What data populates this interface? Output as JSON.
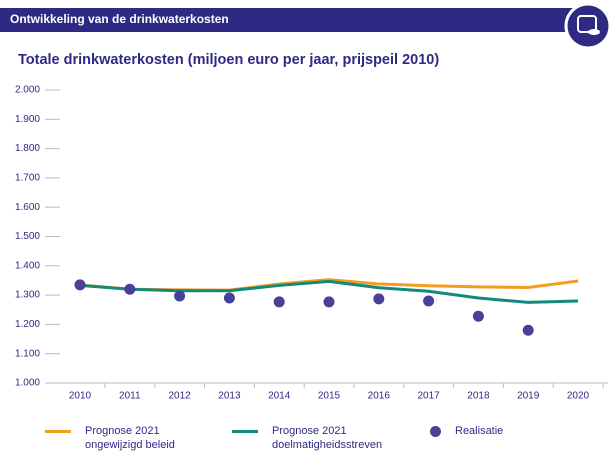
{
  "header": {
    "title": "Ontwikkeling van de drinkwaterkosten"
  },
  "chart_data": {
    "type": "line",
    "title": "Totale drinkwaterkosten (miljoen euro per jaar,  prijspeil 2010)",
    "categories": [
      "2010",
      "2011",
      "2012",
      "2013",
      "2014",
      "2015",
      "2016",
      "2017",
      "2018",
      "2019",
      "2020"
    ],
    "series": [
      {
        "name": "Prognose 2021 ongewijzigd beleid",
        "color": "#f39c1f",
        "type": "line",
        "values": [
          1335,
          1320,
          1318,
          1317,
          1338,
          1353,
          1338,
          1332,
          1328,
          1326,
          1348
        ]
      },
      {
        "name": "Prognose 2021 doelmatigheidsstreven",
        "color": "#13897a",
        "type": "line",
        "values": [
          1333,
          1320,
          1315,
          1315,
          1333,
          1347,
          1325,
          1313,
          1290,
          1275,
          1280
        ]
      },
      {
        "name": "Realisatie",
        "color": "#4a3f99",
        "type": "scatter",
        "values": [
          1335,
          1320,
          1297,
          1290,
          1277,
          1277,
          1287,
          1280,
          1228,
          1180,
          null
        ]
      }
    ],
    "ylim": [
      1000,
      2000
    ],
    "yticks": [
      {
        "value": 1000,
        "label": "1.000"
      },
      {
        "value": 1100,
        "label": "1.100"
      },
      {
        "value": 1200,
        "label": "1.200"
      },
      {
        "value": 1300,
        "label": "1.300"
      },
      {
        "value": 1400,
        "label": "1.400"
      },
      {
        "value": 1500,
        "label": "1.500"
      },
      {
        "value": 1600,
        "label": "1.600"
      },
      {
        "value": 1700,
        "label": "1.700"
      },
      {
        "value": 1800,
        "label": "1.800"
      },
      {
        "value": 1900,
        "label": "1.900"
      },
      {
        "value": 2000,
        "label": "2.000"
      }
    ],
    "grid": false
  }
}
